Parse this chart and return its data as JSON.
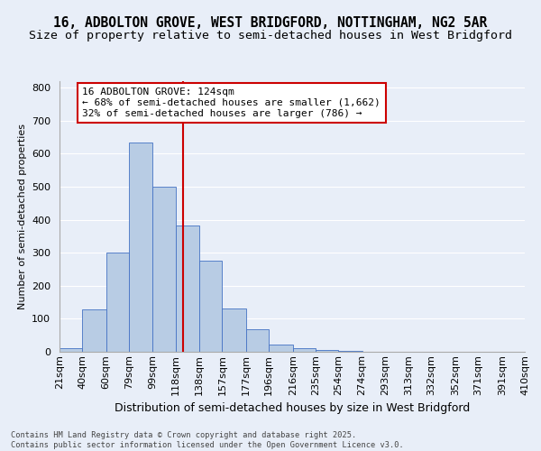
{
  "title_line1": "16, ADBOLTON GROVE, WEST BRIDGFORD, NOTTINGHAM, NG2 5AR",
  "title_line2": "Size of property relative to semi-detached houses in West Bridgford",
  "xlabel": "Distribution of semi-detached houses by size in West Bridgford",
  "ylabel": "Number of semi-detached properties",
  "bin_labels": [
    "21sqm",
    "40sqm",
    "60sqm",
    "79sqm",
    "99sqm",
    "118sqm",
    "138sqm",
    "157sqm",
    "177sqm",
    "196sqm",
    "216sqm",
    "235sqm",
    "254sqm",
    "274sqm",
    "293sqm",
    "313sqm",
    "332sqm",
    "352sqm",
    "371sqm",
    "391sqm",
    "410sqm"
  ],
  "bin_edges": [
    21,
    40,
    60,
    79,
    99,
    118,
    138,
    157,
    177,
    196,
    216,
    235,
    254,
    274,
    293,
    313,
    332,
    352,
    371,
    391,
    410
  ],
  "bar_heights": [
    10,
    128,
    300,
    635,
    500,
    383,
    275,
    130,
    68,
    22,
    10,
    5,
    2,
    1,
    0,
    0,
    0,
    0,
    0,
    0
  ],
  "bar_color": "#b8cce4",
  "bar_edge_color": "#4472c4",
  "vline_x": 124,
  "vline_color": "#cc0000",
  "annotation_line1": "16 ADBOLTON GROVE: 124sqm",
  "annotation_line2": "← 68% of semi-detached houses are smaller (1,662)",
  "annotation_line3": "32% of semi-detached houses are larger (786) →",
  "annotation_box_color": "#cc0000",
  "ylim": [
    0,
    820
  ],
  "yticks": [
    0,
    100,
    200,
    300,
    400,
    500,
    600,
    700,
    800
  ],
  "footer_text": "Contains HM Land Registry data © Crown copyright and database right 2025.\nContains public sector information licensed under the Open Government Licence v3.0.",
  "bg_color": "#e8eef8",
  "grid_color": "#ffffff",
  "title_fontsize": 10.5,
  "subtitle_fontsize": 9.5,
  "tick_fontsize": 8,
  "ylabel_fontsize": 8,
  "xlabel_fontsize": 9
}
